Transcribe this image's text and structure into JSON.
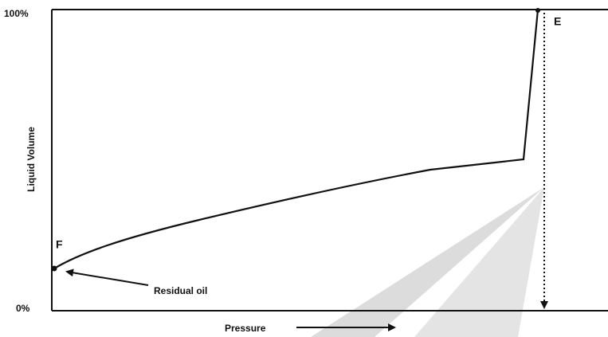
{
  "diagram": {
    "y_axis": {
      "label": "Liquid Volume",
      "top_label": "100%",
      "bottom_label": "0%"
    },
    "x_axis": {
      "label": "Pressure"
    },
    "points": [
      {
        "label": "F"
      },
      {
        "label": "E"
      }
    ],
    "annotation": "Residual oil"
  }
}
